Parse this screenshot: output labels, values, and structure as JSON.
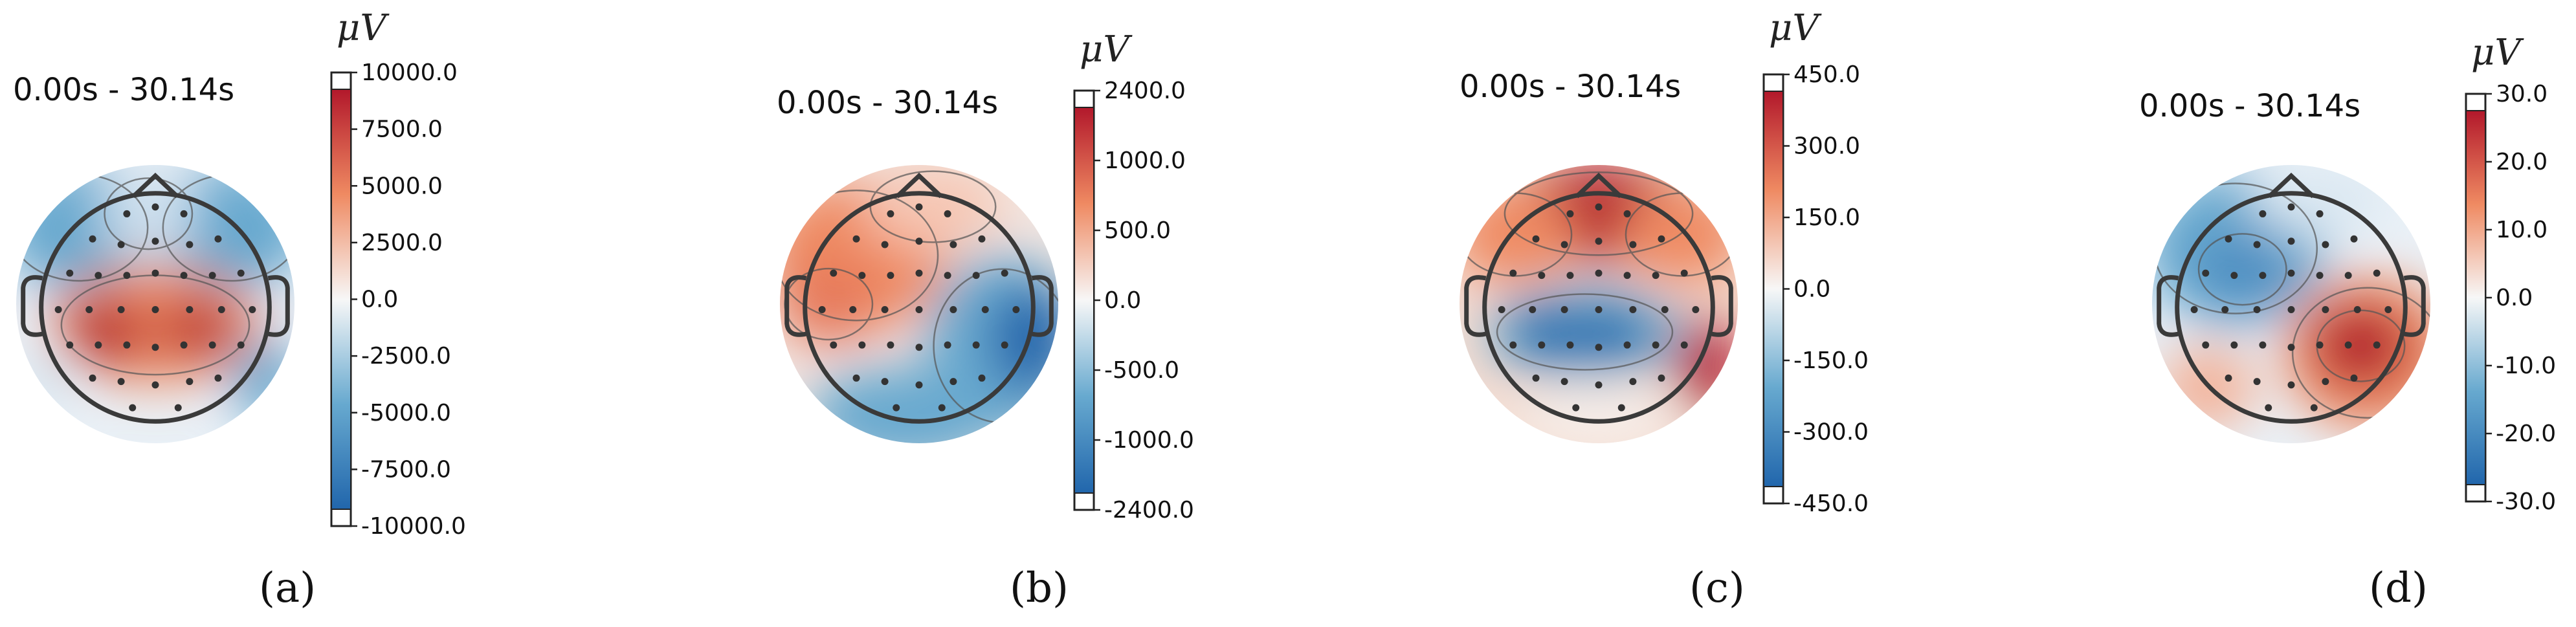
{
  "panels": [
    {
      "label": "(a)",
      "label_letter": "a",
      "time_range": "0.00s - 30.14s",
      "unit": "μV",
      "ticks": [
        "10000.0",
        "7500.0",
        "5000.0",
        "2500.0",
        "0.0",
        "-2500.0",
        "-5000.0",
        "-7500.0",
        "-10000.0"
      ],
      "pattern": "central-positive"
    },
    {
      "label": "(b)",
      "label_letter": "b",
      "time_range": "0.00s - 30.14s",
      "unit": "μV",
      "ticks": [
        "2400.0",
        "1000.0",
        "500.0",
        "0.0",
        "-500.0",
        "-1000.0",
        "-2400.0"
      ],
      "pattern": "left-positive"
    },
    {
      "label": "(c)",
      "label_letter": "c",
      "time_range": "0.00s - 30.14s",
      "unit": "μV",
      "ticks": [
        "450.0",
        "300.0",
        "150.0",
        "0.0",
        "-150.0",
        "-300.0",
        "-450.0"
      ],
      "pattern": "frontal-positive"
    },
    {
      "label": "(d)",
      "label_letter": "d",
      "time_range": "0.00s - 30.14s",
      "unit": "μV",
      "ticks": [
        "30.0",
        "20.0",
        "10.0",
        "0.0",
        "-10.0",
        "-20.0",
        "-30.0"
      ],
      "pattern": "right-positive"
    }
  ],
  "colors": {
    "positive": "#b2182b",
    "positive_mid": "#ef8a62",
    "neutral": "#f7f7f7",
    "negative_mid": "#67a9cf",
    "negative": "#2166ac",
    "outline": "#3a3a3a"
  }
}
